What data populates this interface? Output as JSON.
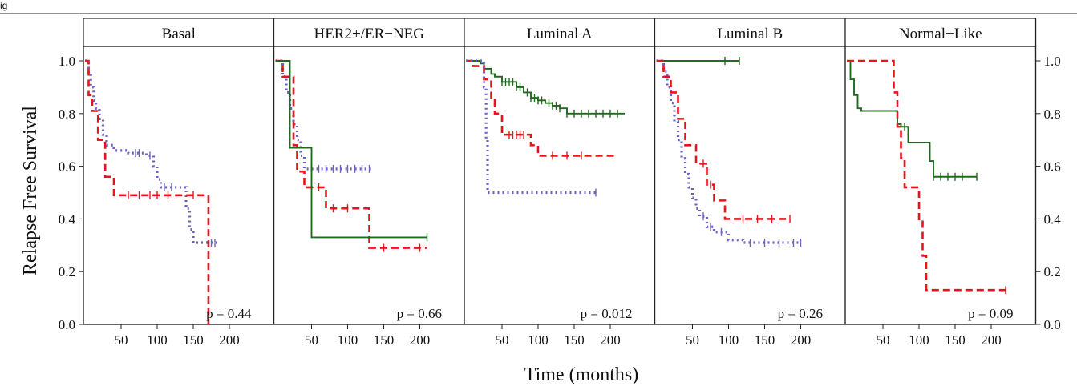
{
  "figure": {
    "label": "ig",
    "ylabel": "Relapse Free Survival",
    "xlabel": "Time (months)"
  },
  "chart_data": {
    "type": "line",
    "chart_kind": "kaplan-meier step survival curves, faceted",
    "xlabel": "Time (months)",
    "ylabel": "Relapse Free Survival",
    "xlim": [
      0,
      225
    ],
    "ylim": [
      0,
      1.05
    ],
    "x_ticks": [
      50,
      100,
      150,
      200
    ],
    "x_tick_labels": [
      "50",
      "100",
      "150",
      "200"
    ],
    "y_ticks": [
      0,
      0.2,
      0.4,
      0.6,
      0.8,
      1.0
    ],
    "y_tick_labels": [
      "0.0",
      "0.2",
      "0.4",
      "0.6",
      "0.8",
      "1.0"
    ],
    "y_axis_sides": "left and right",
    "grid": false,
    "series_styles": [
      {
        "key": "red",
        "color": "#e8141b",
        "dash": "9,5",
        "width": 2.6
      },
      {
        "key": "blue",
        "color": "#6b62c4",
        "dash": "2,4",
        "width": 3.2
      },
      {
        "key": "green",
        "color": "#1f6a1d",
        "dash": "",
        "width": 1.9
      }
    ],
    "panels": [
      {
        "title": "Basal",
        "p_value": "p = 0.44",
        "series": [
          {
            "style": "blue",
            "x": [
              0,
              5,
              8,
              12,
              15,
              20,
              25,
              30,
              40,
              60,
              85,
              95,
              100,
              105,
              110,
              140,
              145,
              150,
              155,
              185
            ],
            "y": [
              1.0,
              0.95,
              0.9,
              0.85,
              0.82,
              0.78,
              0.72,
              0.68,
              0.66,
              0.65,
              0.64,
              0.6,
              0.55,
              0.52,
              0.52,
              0.44,
              0.36,
              0.31,
              0.31,
              0.31
            ],
            "censor": [
              70,
              75,
              90,
              110,
              120,
              175,
              180
            ]
          },
          {
            "style": "red",
            "x": [
              0,
              5,
              10,
              18,
              28,
              40,
              170,
              171
            ],
            "y": [
              1.0,
              0.87,
              0.81,
              0.7,
              0.56,
              0.49,
              0.49,
              0.0
            ],
            "censor": [
              60,
              75,
              90,
              100,
              115,
              150
            ]
          }
        ]
      },
      {
        "title": "HER2+/ER−NEG",
        "p_value": "p = 0.66",
        "series": [
          {
            "style": "blue",
            "x": [
              0,
              10,
              15,
              20,
              25,
              30,
              35,
              40,
              135
            ],
            "y": [
              1.0,
              0.94,
              0.88,
              0.82,
              0.76,
              0.7,
              0.64,
              0.59,
              0.59
            ],
            "censor": [
              50,
              60,
              70,
              80,
              90,
              100,
              110,
              120,
              130
            ]
          },
          {
            "style": "red",
            "x": [
              0,
              10,
              25,
              30,
              40,
              70,
              130,
              210
            ],
            "y": [
              1.0,
              0.94,
              0.68,
              0.58,
              0.52,
              0.44,
              0.29,
              0.29
            ],
            "censor": [
              60,
              80,
              100,
              150,
              200
            ]
          },
          {
            "style": "green",
            "x": [
              0,
              20,
              50,
              210
            ],
            "y": [
              1.0,
              0.67,
              0.33,
              0.33
            ],
            "censor": [
              210
            ]
          }
        ]
      },
      {
        "title": "Luminal A",
        "p_value": "p = 0.012",
        "series": [
          {
            "style": "green",
            "x": [
              0,
              20,
              25,
              35,
              40,
              50,
              70,
              80,
              90,
              100,
              110,
              120,
              130,
              140,
              220
            ],
            "y": [
              1.0,
              0.99,
              0.97,
              0.95,
              0.94,
              0.92,
              0.9,
              0.88,
              0.86,
              0.85,
              0.84,
              0.83,
              0.82,
              0.8,
              0.8
            ],
            "censor": [
              50,
              55,
              60,
              65,
              70,
              75,
              85,
              90,
              95,
              100,
              105,
              115,
              120,
              125,
              130,
              140,
              150,
              160,
              170,
              180,
              190,
              200,
              210
            ]
          },
          {
            "style": "red",
            "x": [
              0,
              10,
              25,
              35,
              40,
              50,
              90,
              100,
              205
            ],
            "y": [
              1.0,
              0.98,
              0.93,
              0.86,
              0.8,
              0.72,
              0.68,
              0.64,
              0.64
            ],
            "censor": [
              60,
              65,
              70,
              75,
              80,
              120,
              140,
              160
            ]
          },
          {
            "style": "blue",
            "x": [
              0,
              20,
              25,
              28,
              30,
              180
            ],
            "y": [
              1.0,
              1.0,
              0.9,
              0.7,
              0.5,
              0.5
            ],
            "censor": [
              180
            ]
          }
        ]
      },
      {
        "title": "Luminal B",
        "p_value": "p = 0.26",
        "series": [
          {
            "style": "green",
            "x": [
              0,
              115
            ],
            "y": [
              1.0,
              1.0
            ],
            "censor": [
              95,
              115
            ]
          },
          {
            "style": "blue",
            "x": [
              0,
              10,
              15,
              20,
              25,
              30,
              35,
              40,
              45,
              50,
              55,
              60,
              70,
              80,
              100,
              120,
              200
            ],
            "y": [
              1.0,
              0.96,
              0.9,
              0.84,
              0.77,
              0.7,
              0.63,
              0.57,
              0.52,
              0.48,
              0.44,
              0.41,
              0.37,
              0.35,
              0.32,
              0.31,
              0.31
            ],
            "censor": [
              65,
              75,
              90,
              130,
              150,
              170,
              190,
              200
            ]
          },
          {
            "style": "red",
            "x": [
              0,
              10,
              20,
              30,
              40,
              55,
              70,
              80,
              95,
              185
            ],
            "y": [
              1.0,
              0.94,
              0.88,
              0.78,
              0.68,
              0.61,
              0.53,
              0.47,
              0.4,
              0.4
            ],
            "censor": [
              65,
              75,
              120,
              140,
              160,
              185
            ]
          }
        ]
      },
      {
        "title": "Normal−Like",
        "p_value": "p = 0.09",
        "series": [
          {
            "style": "green",
            "x": [
              0,
              5,
              10,
              15,
              20,
              40,
              70,
              75,
              85,
              115,
              120,
              180
            ],
            "y": [
              1.0,
              0.93,
              0.87,
              0.82,
              0.81,
              0.81,
              0.76,
              0.75,
              0.69,
              0.62,
              0.56,
              0.56
            ],
            "censor": [
              80,
              120,
              130,
              140,
              150,
              160,
              180
            ]
          },
          {
            "style": "red",
            "x": [
              0,
              65,
              70,
              75,
              80,
              85,
              95,
              100,
              105,
              110,
              220
            ],
            "y": [
              1.0,
              0.88,
              0.75,
              0.63,
              0.52,
              0.52,
              0.52,
              0.39,
              0.26,
              0.13,
              0.13
            ],
            "censor": [
              220
            ]
          }
        ]
      }
    ]
  }
}
